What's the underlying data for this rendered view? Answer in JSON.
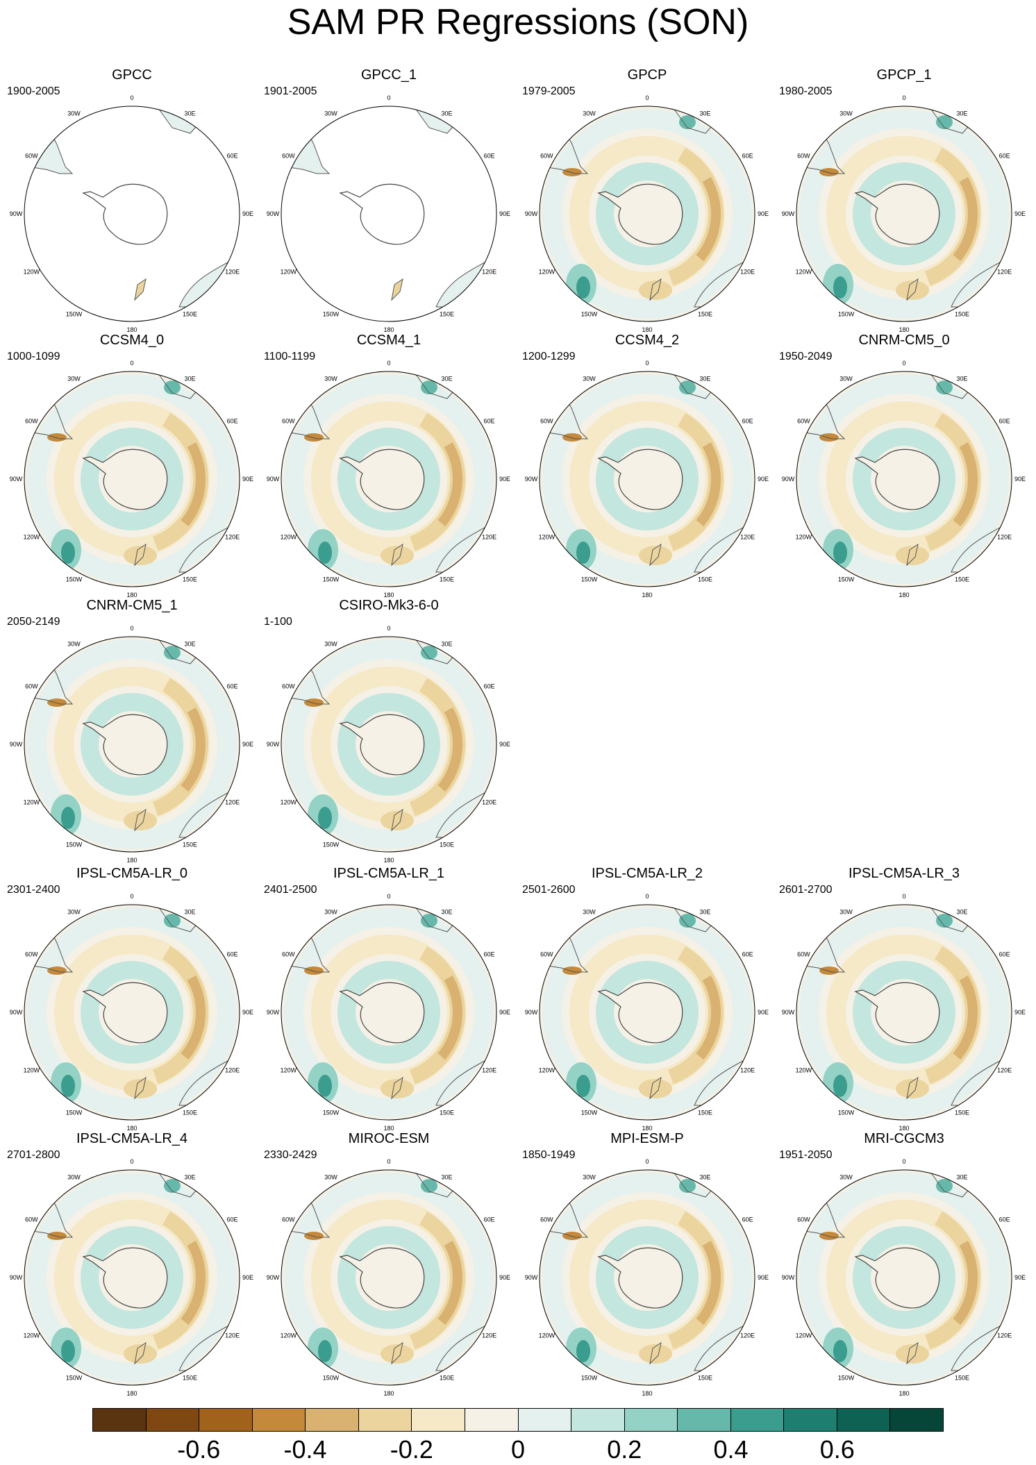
{
  "title": "SAM PR Regressions (SON)",
  "longitude_labels": [
    "0",
    "30E",
    "60E",
    "90E",
    "120E",
    "150E",
    "180",
    "150W",
    "120W",
    "90W",
    "60W",
    "30W"
  ],
  "panels": [
    {
      "name": "GPCC",
      "period": "1900-2005",
      "coverage": "land"
    },
    {
      "name": "GPCC_1",
      "period": "1901-2005",
      "coverage": "land"
    },
    {
      "name": "GPCP",
      "period": "1979-2005",
      "coverage": "global"
    },
    {
      "name": "GPCP_1",
      "period": "1980-2005",
      "coverage": "global"
    },
    {
      "name": "CCSM4_0",
      "period": "1000-1099",
      "coverage": "global"
    },
    {
      "name": "CCSM4_1",
      "period": "1100-1199",
      "coverage": "global"
    },
    {
      "name": "CCSM4_2",
      "period": "1200-1299",
      "coverage": "global"
    },
    {
      "name": "CNRM-CM5_0",
      "period": "1950-2049",
      "coverage": "global"
    },
    {
      "name": "CNRM-CM5_1",
      "period": "2050-2149",
      "coverage": "global"
    },
    {
      "name": "CSIRO-Mk3-6-0",
      "period": "1-100",
      "coverage": "global"
    },
    {
      "name": "IPSL-CM5A-LR_0",
      "period": "2301-2400",
      "coverage": "global"
    },
    {
      "name": "IPSL-CM5A-LR_1",
      "period": "2401-2500",
      "coverage": "global"
    },
    {
      "name": "IPSL-CM5A-LR_2",
      "period": "2501-2600",
      "coverage": "global"
    },
    {
      "name": "IPSL-CM5A-LR_3",
      "period": "2601-2700",
      "coverage": "global"
    },
    {
      "name": "IPSL-CM5A-LR_4",
      "period": "2701-2800",
      "coverage": "global"
    },
    {
      "name": "MIROC-ESM",
      "period": "2330-2429",
      "coverage": "global"
    },
    {
      "name": "MPI-ESM-P",
      "period": "1850-1949",
      "coverage": "global"
    },
    {
      "name": "MRI-CGCM3",
      "period": "1951-2050",
      "coverage": "global"
    }
  ],
  "colorbar": {
    "colors": [
      "#5a3310",
      "#7f4812",
      "#a1621c",
      "#c4893a",
      "#d9b170",
      "#ebd49e",
      "#f5e9c8",
      "#f5f1e6",
      "#e4f1ee",
      "#c3e6df",
      "#94d2c5",
      "#66b9aa",
      "#3a9d8e",
      "#1e7f70",
      "#0e6254",
      "#054639"
    ],
    "tick_labels": [
      "-0.6",
      "-0.4",
      "-0.2",
      "0",
      "0.2",
      "0.4",
      "0.6"
    ]
  }
}
